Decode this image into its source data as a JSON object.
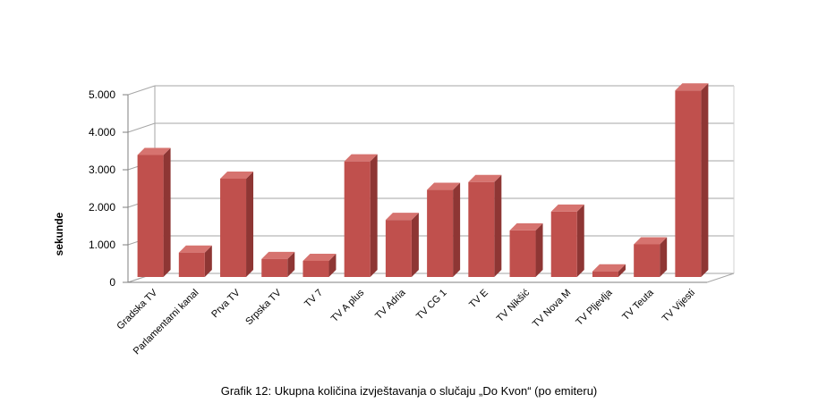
{
  "caption": "Grafik 12: Ukupna količina izvještavanja o slučaju „Do Kvon“ (po emiteru)",
  "chart_data": {
    "type": "bar",
    "style": "3d",
    "ylabel": "sekunde",
    "xlabel": "",
    "ylim": [
      0,
      5000
    ],
    "yticks": [
      0,
      1000,
      2000,
      3000,
      4000,
      5000
    ],
    "ytick_labels": [
      "0",
      "1.000",
      "2.000",
      "3.000",
      "4.000",
      "5.000"
    ],
    "grid": true,
    "categories": [
      "Gradska TV",
      "Parlamentarni kanal",
      "Prva TV",
      "Srpska TV",
      "TV 7",
      "TV A plus",
      "TV Adria",
      "TV CG 1",
      "TV E",
      "TV Nikšić",
      "TV Nova M",
      "TV Pljevlja",
      "TV Teuta",
      "TV Vijesti"
    ],
    "values": [
      3250,
      650,
      2620,
      480,
      430,
      3080,
      1520,
      2320,
      2530,
      1240,
      1740,
      150,
      870,
      4970
    ],
    "bar_color": "#c0504d"
  }
}
